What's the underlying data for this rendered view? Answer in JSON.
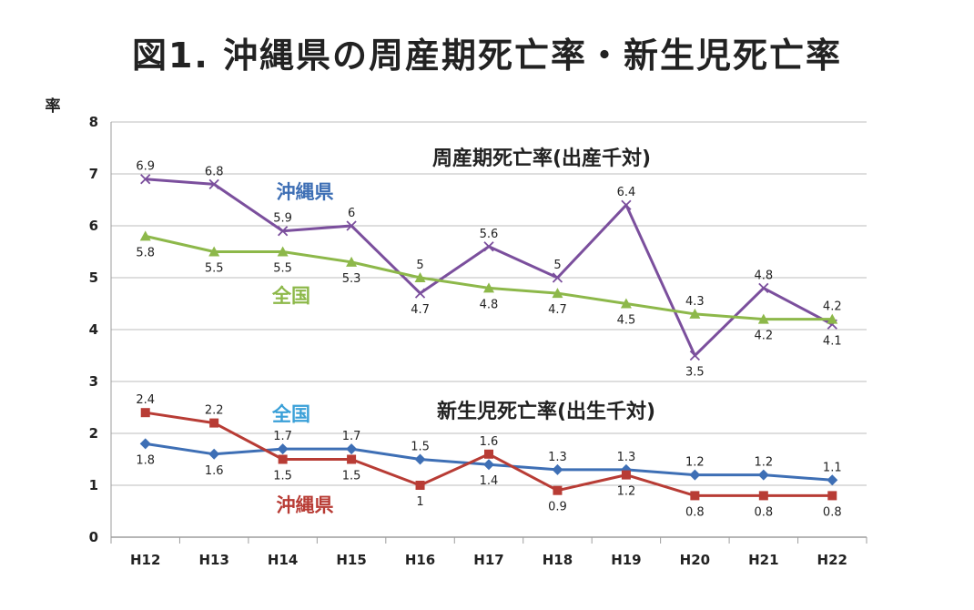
{
  "title": "図1. 沖縄県の周産期死亡率・新生児死亡率",
  "chart_data": {
    "type": "line",
    "ylabel": "率",
    "ylim": [
      0,
      8
    ],
    "yticks": [
      "0",
      "1",
      "2",
      "3",
      "4",
      "5",
      "6",
      "7",
      "8"
    ],
    "grid": true,
    "categories": [
      "H12",
      "H13",
      "H14",
      "H15",
      "H16",
      "H17",
      "H18",
      "H19",
      "H20",
      "H21",
      "H22"
    ],
    "groups": [
      {
        "subtitle": "周産期死亡率(出産千対)",
        "series": [
          {
            "name": "沖縄県",
            "color": "#7b4f9d",
            "marker": "x",
            "values": [
              6.9,
              6.8,
              5.9,
              6,
              4.7,
              5.6,
              5,
              6.4,
              3.5,
              4.8,
              4.1
            ]
          },
          {
            "name": "全国",
            "color": "#8db84a",
            "marker": "triangle",
            "values": [
              5.8,
              5.5,
              5.5,
              5.3,
              5,
              4.8,
              4.7,
              4.5,
              4.3,
              4.2,
              4.2
            ]
          }
        ]
      },
      {
        "subtitle": "新生児死亡率(出生千対)",
        "series": [
          {
            "name": "全国",
            "color": "#3e6fb5",
            "marker": "diamond",
            "values": [
              1.8,
              1.6,
              1.7,
              1.7,
              1.5,
              1.4,
              1.3,
              1.3,
              1.2,
              1.2,
              1.1
            ]
          },
          {
            "name": "沖縄県",
            "color": "#b83c35",
            "marker": "square",
            "values": [
              2.4,
              2.2,
              1.5,
              1.5,
              1,
              1.6,
              0.9,
              1.2,
              0.8,
              0.8,
              0.8
            ]
          }
        ]
      }
    ]
  },
  "series_label_colors": {
    "perinatal_okinawa": "#3e6fb5",
    "perinatal_national": "#8db84a",
    "neonatal_national": "#3aa0d8",
    "neonatal_okinawa": "#b83c35"
  }
}
